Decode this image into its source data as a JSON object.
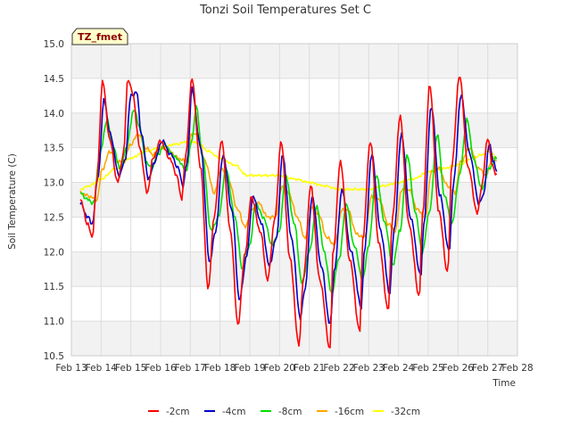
{
  "chart_data": {
    "type": "line",
    "title": "Tonzi Soil Temperatures Set C",
    "xlabel": "Time",
    "ylabel": "Soil Temperature (C)",
    "site_label": "TZ_fmet",
    "xlim": [
      13,
      28
    ],
    "ylim": [
      10.5,
      15.0
    ],
    "y_ticks": [
      10.5,
      11.0,
      11.5,
      12.0,
      12.5,
      13.0,
      13.5,
      14.0,
      14.5,
      15.0
    ],
    "x_ticks": [
      {
        "v": 13,
        "label": "Feb 13"
      },
      {
        "v": 14,
        "label": "Feb 14"
      },
      {
        "v": 15,
        "label": "Feb 15"
      },
      {
        "v": 16,
        "label": "Feb 16"
      },
      {
        "v": 17,
        "label": "Feb 17"
      },
      {
        "v": 18,
        "label": "Feb 18"
      },
      {
        "v": 19,
        "label": "Feb 19"
      },
      {
        "v": 20,
        "label": "Feb 20"
      },
      {
        "v": 21,
        "label": "Feb 21"
      },
      {
        "v": 22,
        "label": "Feb 22"
      },
      {
        "v": 23,
        "label": "Feb 23"
      },
      {
        "v": 24,
        "label": "Feb 24"
      },
      {
        "v": 25,
        "label": "Feb 25"
      },
      {
        "v": 26,
        "label": "Feb 26"
      },
      {
        "v": 27,
        "label": "Feb 27"
      },
      {
        "v": 28,
        "label": "Feb 28"
      }
    ],
    "grid": true,
    "legend_position": "bottom",
    "series": [
      {
        "name": "-2cm",
        "color": "#ff0000",
        "x": [
          13.3,
          13.55,
          13.7,
          13.85,
          14.05,
          14.3,
          14.55,
          14.75,
          14.9,
          15.05,
          15.3,
          15.55,
          15.75,
          16.0,
          16.3,
          16.55,
          16.7,
          16.85,
          17.05,
          17.35,
          17.6,
          17.8,
          18.05,
          18.35,
          18.6,
          18.85,
          19.05,
          19.35,
          19.6,
          19.85,
          20.05,
          20.35,
          20.65,
          20.8,
          21.05,
          21.35,
          21.7,
          21.8,
          22.05,
          22.35,
          22.7,
          22.8,
          23.05,
          23.35,
          23.65,
          23.8,
          24.05,
          24.35,
          24.7,
          24.8,
          25.05,
          25.35,
          25.65,
          25.8,
          26.05,
          26.35,
          26.65,
          26.8,
          27.0,
          27.15,
          27.3
        ],
        "y": [
          12.75,
          12.4,
          12.2,
          13.0,
          14.45,
          13.6,
          13.0,
          13.4,
          14.5,
          14.3,
          13.5,
          12.85,
          13.35,
          13.6,
          13.35,
          13.1,
          12.75,
          13.4,
          14.5,
          13.2,
          11.45,
          12.5,
          13.6,
          12.3,
          10.95,
          12.0,
          12.8,
          12.3,
          11.6,
          12.5,
          13.6,
          11.9,
          10.65,
          11.6,
          12.95,
          11.6,
          10.6,
          12.0,
          13.3,
          11.9,
          10.85,
          12.2,
          13.6,
          12.1,
          11.15,
          12.5,
          13.95,
          12.4,
          11.35,
          12.5,
          14.4,
          12.6,
          11.7,
          13.3,
          14.55,
          13.2,
          12.55,
          12.95,
          13.65,
          13.25,
          13.1
        ]
      },
      {
        "name": "-4cm",
        "color": "#0000cc",
        "x": [
          13.3,
          13.55,
          13.7,
          13.9,
          14.1,
          14.3,
          14.6,
          14.8,
          15.0,
          15.2,
          15.35,
          15.6,
          15.8,
          16.05,
          16.35,
          16.6,
          16.75,
          16.9,
          17.05,
          17.35,
          17.65,
          17.85,
          18.1,
          18.4,
          18.65,
          18.9,
          19.1,
          19.4,
          19.65,
          19.9,
          20.1,
          20.4,
          20.7,
          20.85,
          21.1,
          21.4,
          21.7,
          21.85,
          22.1,
          22.4,
          22.75,
          22.85,
          23.1,
          23.4,
          23.7,
          23.85,
          24.1,
          24.4,
          24.75,
          24.85,
          25.1,
          25.4,
          25.7,
          25.85,
          26.1,
          26.4,
          26.7,
          26.85,
          27.05,
          27.2,
          27.3
        ],
        "y": [
          12.7,
          12.5,
          12.4,
          13.1,
          14.2,
          13.7,
          13.1,
          13.3,
          14.25,
          14.3,
          13.7,
          13.05,
          13.3,
          13.6,
          13.4,
          13.2,
          12.95,
          13.3,
          14.35,
          13.5,
          11.85,
          12.3,
          13.4,
          12.6,
          11.3,
          11.95,
          12.8,
          12.4,
          11.8,
          12.2,
          13.4,
          12.2,
          11.05,
          11.45,
          12.8,
          11.8,
          10.95,
          11.75,
          12.9,
          12.0,
          11.2,
          12.0,
          13.4,
          12.3,
          11.4,
          12.3,
          13.7,
          12.5,
          11.65,
          12.4,
          14.1,
          12.8,
          12.0,
          13.0,
          14.25,
          13.4,
          12.7,
          12.8,
          13.55,
          13.3,
          13.15
        ]
      },
      {
        "name": "-8cm",
        "color": "#00dd00",
        "x": [
          13.3,
          13.55,
          13.75,
          13.95,
          14.2,
          14.4,
          14.65,
          14.85,
          15.1,
          15.3,
          15.5,
          15.7,
          15.9,
          16.15,
          16.4,
          16.65,
          16.85,
          17.05,
          17.2,
          17.4,
          17.7,
          17.95,
          18.2,
          18.5,
          18.75,
          19.0,
          19.2,
          19.45,
          19.75,
          20.0,
          20.2,
          20.5,
          20.75,
          21.0,
          21.25,
          21.5,
          21.75,
          22.0,
          22.25,
          22.5,
          22.8,
          23.0,
          23.25,
          23.55,
          23.8,
          24.05,
          24.3,
          24.55,
          24.8,
          25.05,
          25.3,
          25.55,
          25.8,
          26.05,
          26.3,
          26.55,
          26.8,
          27.05,
          27.3
        ],
        "y": [
          12.85,
          12.75,
          12.7,
          13.4,
          13.9,
          13.5,
          13.2,
          13.5,
          14.05,
          13.8,
          13.3,
          13.2,
          13.4,
          13.55,
          13.4,
          13.3,
          13.15,
          13.6,
          14.1,
          13.4,
          12.3,
          12.5,
          13.2,
          12.5,
          11.75,
          12.1,
          12.7,
          12.5,
          12.1,
          12.3,
          13.1,
          12.4,
          11.55,
          12.0,
          12.65,
          12.0,
          11.4,
          11.9,
          12.7,
          12.1,
          11.6,
          12.1,
          13.1,
          12.4,
          11.8,
          12.3,
          13.4,
          12.6,
          12.0,
          12.6,
          13.7,
          12.8,
          12.4,
          13.1,
          13.9,
          13.3,
          12.9,
          13.2,
          13.35
        ]
      },
      {
        "name": "-16cm",
        "color": "#ffa500",
        "x": [
          13.3,
          13.6,
          13.85,
          14.05,
          14.3,
          14.55,
          14.75,
          15.0,
          15.25,
          15.5,
          15.75,
          16.0,
          16.3,
          16.6,
          16.85,
          17.05,
          17.25,
          17.5,
          17.8,
          18.05,
          18.3,
          18.6,
          18.85,
          19.05,
          19.3,
          19.6,
          19.85,
          20.1,
          20.3,
          20.6,
          20.85,
          21.1,
          21.3,
          21.6,
          21.85,
          22.1,
          22.3,
          22.6,
          22.85,
          23.1,
          23.35,
          23.65,
          23.9,
          24.1,
          24.35,
          24.65,
          24.9,
          25.1,
          25.35,
          25.65,
          25.9,
          26.1,
          26.4,
          26.7,
          26.95,
          27.15,
          27.3
        ],
        "y": [
          12.85,
          12.8,
          12.75,
          13.2,
          13.45,
          13.3,
          13.3,
          13.55,
          13.7,
          13.5,
          13.4,
          13.5,
          13.45,
          13.35,
          13.3,
          13.7,
          13.7,
          13.3,
          12.85,
          13.2,
          13.0,
          12.6,
          12.35,
          12.6,
          12.7,
          12.5,
          12.5,
          12.95,
          12.85,
          12.5,
          12.2,
          12.65,
          12.55,
          12.2,
          12.1,
          12.6,
          12.6,
          12.25,
          12.2,
          12.8,
          12.75,
          12.4,
          12.3,
          12.9,
          12.9,
          12.6,
          12.5,
          13.15,
          13.2,
          12.95,
          12.85,
          13.3,
          13.5,
          13.2,
          13.1,
          13.35,
          13.3
        ]
      },
      {
        "name": "-32cm",
        "color": "#ffff00",
        "x": [
          13.3,
          13.6,
          14.0,
          14.5,
          15.0,
          15.5,
          16.0,
          16.5,
          17.0,
          17.3,
          17.6,
          18.0,
          18.5,
          18.9,
          19.2,
          19.6,
          20.0,
          20.5,
          21.0,
          21.5,
          22.0,
          22.5,
          23.0,
          23.5,
          24.0,
          24.5,
          25.0,
          25.5,
          26.0,
          26.5,
          26.8,
          27.05,
          27.3
        ],
        "y": [
          12.9,
          12.95,
          13.05,
          13.2,
          13.35,
          13.45,
          13.5,
          13.55,
          13.6,
          13.55,
          13.45,
          13.35,
          13.25,
          13.1,
          13.1,
          13.1,
          13.1,
          13.05,
          13.0,
          12.95,
          12.9,
          12.9,
          12.9,
          12.95,
          13.0,
          13.05,
          13.15,
          13.2,
          13.25,
          13.35,
          13.4,
          13.45,
          13.35
        ]
      }
    ]
  }
}
